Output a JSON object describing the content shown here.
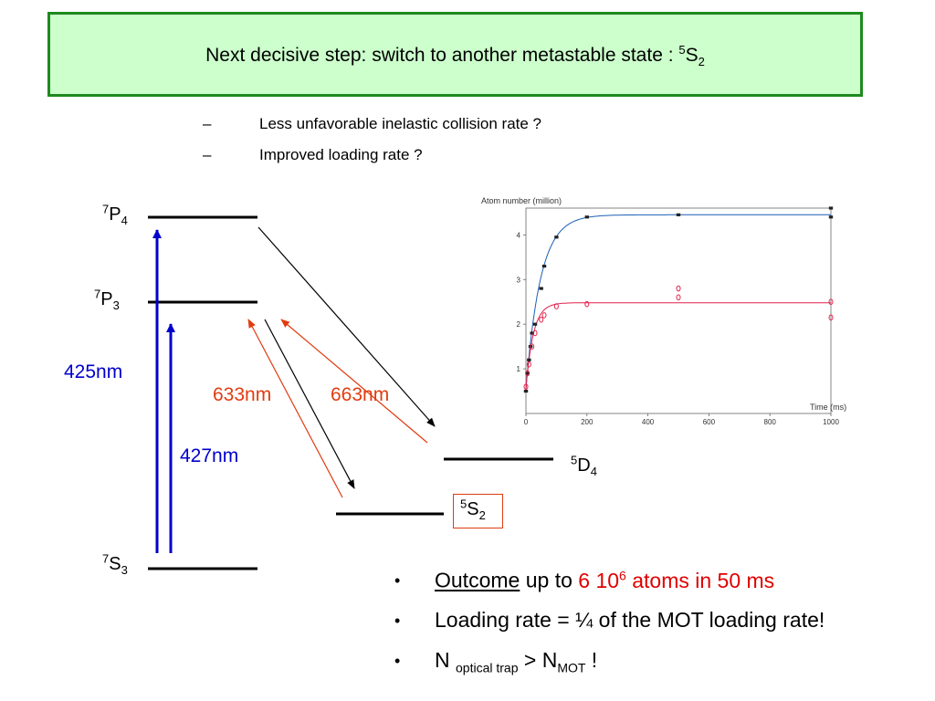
{
  "slide": {
    "title": "Next decisive step: switch to another metastable state :",
    "title_state_sup": "5",
    "title_state_letter": "S",
    "title_state_sub": "2",
    "sub_bullets": [
      {
        "dash": "–",
        "text": "Less unfavorable inelastic collision rate ?"
      },
      {
        "dash": "–",
        "text": "Improved loading rate ?"
      }
    ]
  },
  "diagram": {
    "levels": {
      "p4": {
        "sup": "7",
        "letter": "P",
        "sub": "4"
      },
      "p3": {
        "sup": "7",
        "letter": "P",
        "sub": "3"
      },
      "s3": {
        "sup": "7",
        "letter": "S",
        "sub": "3"
      },
      "d4": {
        "sup": "5",
        "letter": "D",
        "sub": "4"
      },
      "s2": {
        "sup": "5",
        "letter": "S",
        "sub": "2"
      }
    },
    "wavelengths": {
      "w425": "425nm",
      "w427": "427nm",
      "w633": "633nm",
      "w663": "663nm"
    },
    "colors": {
      "blue": "#0000cc",
      "red": "#e03c10",
      "black": "#000000"
    }
  },
  "chart_data": {
    "type": "scatter",
    "ylabel": "Atom number (million)",
    "xlabel": "Time (ms)",
    "xlim": [
      0,
      1000
    ],
    "ylim": [
      0,
      4.6
    ],
    "x_ticks": [
      0,
      200,
      400,
      600,
      800,
      1000
    ],
    "y_ticks": [
      1,
      2,
      3,
      4
    ],
    "series": [
      {
        "color": "#1a5fb4",
        "points": [
          [
            0,
            0.5
          ],
          [
            5,
            0.9
          ],
          [
            10,
            1.2
          ],
          [
            15,
            1.5
          ],
          [
            20,
            1.8
          ],
          [
            30,
            2.0
          ],
          [
            50,
            2.8
          ],
          [
            60,
            3.3
          ],
          [
            100,
            3.95
          ],
          [
            200,
            4.4
          ],
          [
            500,
            4.45
          ],
          [
            1000,
            4.6
          ],
          [
            1000,
            4.4
          ]
        ],
        "fit": {
          "a": 4.45,
          "tau": 48
        }
      },
      {
        "color": "#e0204a",
        "points": [
          [
            0,
            0.6
          ],
          [
            5,
            0.9
          ],
          [
            10,
            1.1
          ],
          [
            20,
            1.5
          ],
          [
            30,
            1.8
          ],
          [
            50,
            2.1
          ],
          [
            60,
            2.2
          ],
          [
            100,
            2.4
          ],
          [
            200,
            2.45
          ],
          [
            500,
            2.8
          ],
          [
            500,
            2.6
          ],
          [
            1000,
            2.5
          ],
          [
            1000,
            2.15
          ]
        ],
        "fit": {
          "a": 2.48,
          "tau": 24
        }
      }
    ]
  },
  "bullets": {
    "b1": {
      "dot": "•",
      "underlined": "Outcome",
      "middle": " up to ",
      "red_main": "6 10",
      "red_sup": "6",
      "red_tail": " atoms in 50 ms"
    },
    "b2": {
      "dot": "•",
      "text": "Loading rate = ¼ of the MOT loading rate!"
    },
    "b3": {
      "dot": "•",
      "n": "N ",
      "sub1": "optical trap",
      "gt": " > N",
      "sub2": "MOT",
      "end": " !"
    }
  }
}
